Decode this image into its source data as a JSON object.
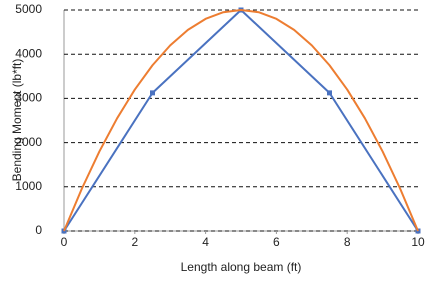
{
  "chart_data": {
    "type": "line",
    "xlabel": "Length along beam (ft)",
    "ylabel": "Bending Moment (lb*ft)",
    "xlim": [
      0,
      10
    ],
    "xticks": [
      0,
      2,
      4,
      6,
      8,
      10
    ],
    "ylim": [
      0,
      5000
    ],
    "yticks": [
      0,
      1000,
      2000,
      3000,
      4000,
      5000
    ],
    "grid": true,
    "series": [
      {
        "color": "#4a72c0",
        "markers": true,
        "x": [
          0,
          2.5,
          5,
          7.5,
          10
        ],
        "values": [
          0,
          3125,
          5000,
          3125,
          0
        ]
      },
      {
        "color": "#ed7d31",
        "markers": false,
        "x": [
          0,
          0.5,
          1,
          1.5,
          2,
          2.5,
          3,
          3.5,
          4,
          4.5,
          5,
          5.5,
          6,
          6.5,
          7,
          7.5,
          8,
          8.5,
          9,
          9.5,
          10
        ],
        "values": [
          0,
          950,
          1800,
          2550,
          3200,
          3750,
          4200,
          4550,
          4800,
          4950,
          5000,
          4950,
          4800,
          4550,
          4200,
          3750,
          3200,
          2550,
          1800,
          950,
          0
        ]
      }
    ]
  }
}
